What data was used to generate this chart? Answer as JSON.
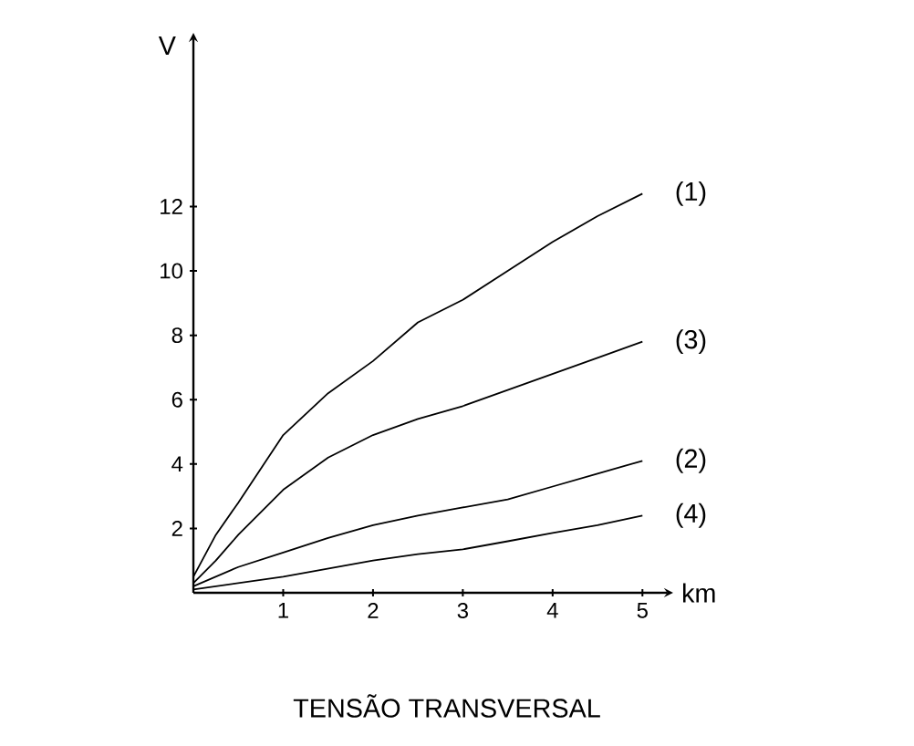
{
  "chart_data": {
    "type": "line",
    "title": "TENSÃO TRANSVERSAL",
    "xlabel": "km",
    "ylabel": "V",
    "xlim": [
      0,
      5.2
    ],
    "ylim": [
      0,
      17
    ],
    "xticks": [
      1,
      2,
      3,
      4,
      5
    ],
    "yticks": [
      2,
      4,
      6,
      8,
      10,
      12
    ],
    "line_style": "solid",
    "series": [
      {
        "name": "(1)",
        "color": "#000000",
        "x": [
          0,
          0.25,
          0.5,
          1,
          1.5,
          2,
          2.5,
          3,
          3.5,
          4,
          4.5,
          5
        ],
        "values": [
          0.5,
          1.8,
          2.8,
          4.9,
          6.2,
          7.2,
          8.4,
          9.1,
          10.0,
          10.9,
          11.7,
          12.4
        ]
      },
      {
        "name": "(3)",
        "color": "#000000",
        "x": [
          0,
          0.25,
          0.5,
          1,
          1.5,
          2,
          2.5,
          3,
          3.5,
          4,
          4.5,
          5
        ],
        "values": [
          0.3,
          1.0,
          1.8,
          3.2,
          4.2,
          4.9,
          5.4,
          5.8,
          6.3,
          6.8,
          7.3,
          7.8
        ]
      },
      {
        "name": "(2)",
        "color": "#000000",
        "x": [
          0,
          0.5,
          1,
          1.5,
          2,
          2.5,
          3,
          3.5,
          4,
          4.5,
          5
        ],
        "values": [
          0.2,
          0.8,
          1.25,
          1.7,
          2.1,
          2.4,
          2.65,
          2.9,
          3.3,
          3.7,
          4.1
        ]
      },
      {
        "name": "(4)",
        "color": "#000000",
        "x": [
          0,
          0.5,
          1,
          1.5,
          2,
          2.5,
          3,
          3.5,
          4,
          4.5,
          5
        ],
        "values": [
          0.1,
          0.3,
          0.5,
          0.75,
          1.0,
          1.2,
          1.35,
          1.6,
          1.86,
          2.1,
          2.4
        ]
      }
    ]
  }
}
